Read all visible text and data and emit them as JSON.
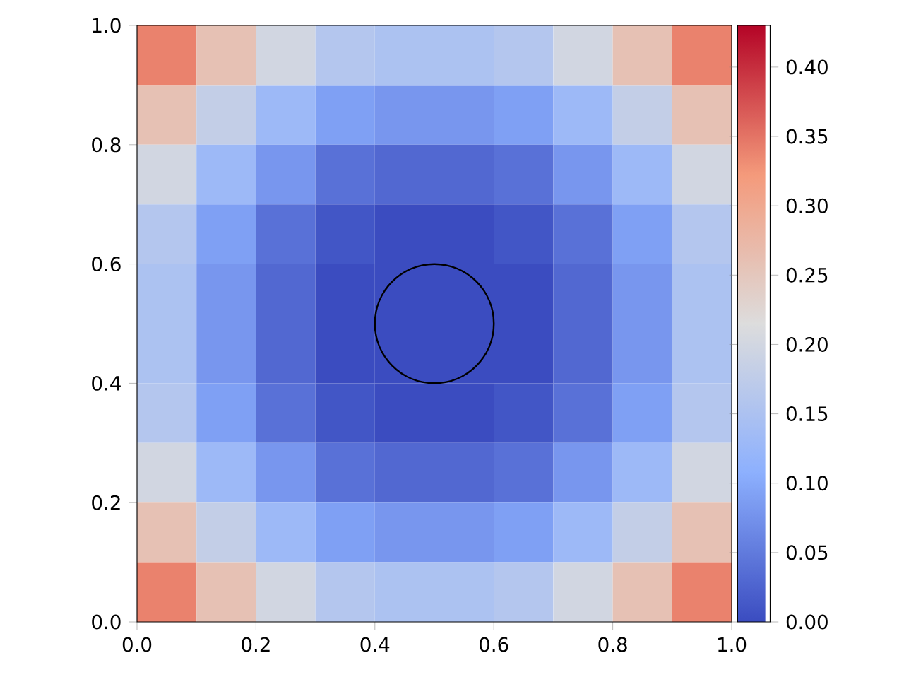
{
  "chart_data": {
    "type": "heatmap",
    "xlim": [
      0,
      1
    ],
    "ylim": [
      0,
      1
    ],
    "xticks": [
      {
        "value": 0,
        "label": "0.0"
      },
      {
        "value": 0.2,
        "label": "0.2"
      },
      {
        "value": 0.4,
        "label": "0.4"
      },
      {
        "value": 0.6,
        "label": "0.6"
      },
      {
        "value": 0.8,
        "label": "0.8"
      },
      {
        "value": 1,
        "label": "1.0"
      }
    ],
    "yticks": [
      {
        "value": 0,
        "label": "0.0"
      },
      {
        "value": 0.2,
        "label": "0.2"
      },
      {
        "value": 0.4,
        "label": "0.4"
      },
      {
        "value": 0.6,
        "label": "0.6"
      },
      {
        "value": 0.8,
        "label": "0.8"
      },
      {
        "value": 1,
        "label": "1.0"
      }
    ],
    "cticks": [
      {
        "value": 0,
        "label": "0.00"
      },
      {
        "value": 0.05,
        "label": "0.05"
      },
      {
        "value": 0.1,
        "label": "0.10"
      },
      {
        "value": 0.15,
        "label": "0.15"
      },
      {
        "value": 0.2,
        "label": "0.20"
      },
      {
        "value": 0.25,
        "label": "0.25"
      },
      {
        "value": 0.3,
        "label": "0.30"
      },
      {
        "value": 0.35,
        "label": "0.35"
      },
      {
        "value": 0.4,
        "label": "0.40"
      }
    ],
    "cells": [
      [
        0.34,
        0.26,
        0.2,
        0.16,
        0.15,
        0.15,
        0.16,
        0.2,
        0.26,
        0.34
      ],
      [
        0.26,
        0.18,
        0.13,
        0.09,
        0.08,
        0.08,
        0.09,
        0.13,
        0.18,
        0.26
      ],
      [
        0.2,
        0.13,
        0.08,
        0.04,
        0.03,
        0.03,
        0.04,
        0.08,
        0.13,
        0.2
      ],
      [
        0.16,
        0.09,
        0.04,
        0.01,
        0,
        0,
        0.01,
        0.04,
        0.09,
        0.16
      ],
      [
        0.15,
        0.08,
        0.03,
        0,
        0,
        0,
        0,
        0.03,
        0.08,
        0.15
      ],
      [
        0.15,
        0.08,
        0.03,
        0,
        0,
        0,
        0,
        0.03,
        0.08,
        0.15
      ],
      [
        0.16,
        0.09,
        0.04,
        0.01,
        0,
        0,
        0.01,
        0.04,
        0.09,
        0.16
      ],
      [
        0.2,
        0.13,
        0.08,
        0.04,
        0.03,
        0.03,
        0.04,
        0.08,
        0.13,
        0.2
      ],
      [
        0.26,
        0.18,
        0.13,
        0.09,
        0.08,
        0.08,
        0.09,
        0.13,
        0.18,
        0.26
      ],
      [
        0.34,
        0.26,
        0.2,
        0.16,
        0.15,
        0.15,
        0.16,
        0.2,
        0.26,
        0.34
      ]
    ],
    "clim": [
      0,
      0.43
    ]
  }
}
